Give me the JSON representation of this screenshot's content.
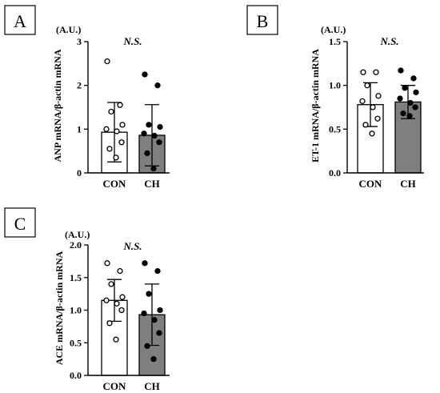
{
  "colors": {
    "bar_con": "#ffffff",
    "bar_ch": "#7f7f7f",
    "ink": "#000000"
  },
  "chart_data": [
    {
      "panel": "A",
      "type": "bar",
      "unit": "(A.U.)",
      "ylabel": "ANP mRNA/β-actin mRNA",
      "significance": "N.S.",
      "categories": [
        "CON",
        "CH"
      ],
      "ylim": [
        0,
        3
      ],
      "yticks": [
        "0",
        "1",
        "2",
        "3"
      ],
      "means": [
        0.93,
        0.86
      ],
      "sd": [
        0.68,
        0.7
      ],
      "points": [
        [
          2.55,
          1.55,
          1.4,
          1.1,
          1.0,
          0.95,
          0.7,
          0.55,
          0.35
        ],
        [
          2.25,
          2.0,
          1.1,
          1.05,
          0.9,
          0.85,
          0.7,
          0.45,
          0.1
        ]
      ]
    },
    {
      "panel": "B",
      "type": "bar",
      "unit": "(A.U.)",
      "ylabel": "ET-1 mRNA/β-actin mRNA",
      "significance": "N.S.",
      "categories": [
        "CON",
        "CH"
      ],
      "ylim": [
        0,
        1.5
      ],
      "yticks": [
        "0.0",
        "0.5",
        "1.0",
        "1.5"
      ],
      "means": [
        0.78,
        0.81
      ],
      "sd": [
        0.25,
        0.19
      ],
      "points": [
        [
          1.15,
          1.15,
          1.0,
          0.88,
          0.82,
          0.75,
          0.62,
          0.55,
          0.45
        ],
        [
          1.17,
          1.08,
          0.97,
          0.92,
          0.85,
          0.8,
          0.75,
          0.68,
          0.65
        ]
      ]
    },
    {
      "panel": "C",
      "type": "bar",
      "unit": "(A.U.)",
      "ylabel": "ACE mRNA/β-actin mRNA",
      "significance": "N.S.",
      "categories": [
        "CON",
        "CH"
      ],
      "ylim": [
        0,
        2.0
      ],
      "yticks": [
        "0.0",
        "0.5",
        "1.0",
        "1.5",
        "2.0"
      ],
      "means": [
        1.15,
        0.93
      ],
      "sd": [
        0.32,
        0.47
      ],
      "points": [
        [
          1.72,
          1.6,
          1.4,
          1.2,
          1.15,
          1.1,
          1.0,
          0.8,
          0.55
        ],
        [
          1.72,
          1.6,
          1.25,
          1.0,
          0.95,
          0.85,
          0.65,
          0.45,
          0.25
        ]
      ]
    }
  ]
}
